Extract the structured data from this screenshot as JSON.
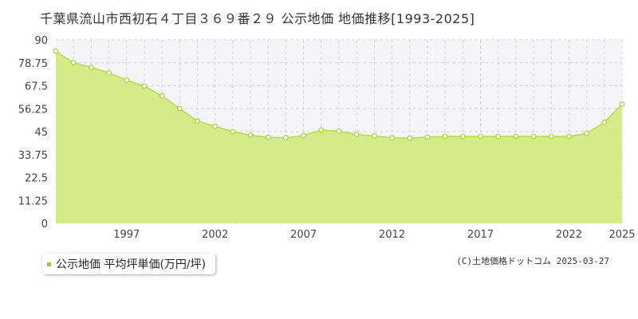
{
  "title": "千葉県流山市西初石４丁目３６９番２９ 公示地価 地価推移[1993-2025]",
  "legend": {
    "label": "公示地価 平均坪単価(万円/坪)"
  },
  "copyright": "(C)土地価格ドットコム 2025-03-27",
  "colors": {
    "fill": "#d6ec8a",
    "line": "#b5dc4a",
    "point_fill": "#ffffff",
    "point_stroke": "#a8d03c",
    "plot_bg": "#f5f5f7",
    "grid": "#d8d8d8"
  },
  "chart_data": {
    "type": "area",
    "xlim": [
      1993,
      2025
    ],
    "ylim": [
      0,
      90
    ],
    "y_ticks": [
      "0",
      "11.25",
      "22.5",
      "33.75",
      "45",
      "56.25",
      "67.5",
      "78.75",
      "90"
    ],
    "x_ticks": [
      "1997",
      "2002",
      "2007",
      "2012",
      "2017",
      "2022",
      "2025"
    ],
    "grid": true,
    "series": [
      {
        "x": [
          1993,
          1994,
          1995,
          1996,
          1997,
          1998,
          1999,
          2000,
          2001,
          2002,
          2003,
          2004,
          2005,
          2006,
          2007,
          2008,
          2009,
          2010,
          2011,
          2012,
          2013,
          2014,
          2015,
          2016,
          2017,
          2018,
          2019,
          2020,
          2021,
          2022,
          2023,
          2024,
          2025
        ],
        "values": [
          84.5,
          78.8,
          76.5,
          73.8,
          70.2,
          67.4,
          62.5,
          56.3,
          50.2,
          47.6,
          45.0,
          43.2,
          42.2,
          42.0,
          43.0,
          45.8,
          45.2,
          43.6,
          42.9,
          41.9,
          41.8,
          42.3,
          42.6,
          42.6,
          42.6,
          42.6,
          42.6,
          42.6,
          42.6,
          42.6,
          44.1,
          49.5,
          58.5
        ]
      }
    ]
  }
}
